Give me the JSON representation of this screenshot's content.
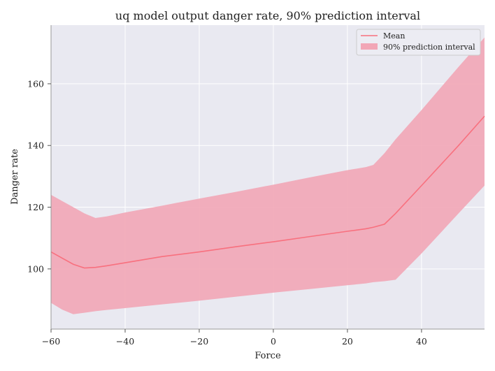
{
  "chart_data": {
    "type": "line",
    "title": "uq model output danger rate, 90% prediction interval",
    "xlabel": "Force",
    "ylabel": "Danger rate",
    "xlim": [
      -60,
      57
    ],
    "ylim": [
      80.5,
      179
    ],
    "xticks": [
      -60,
      -40,
      -20,
      0,
      20,
      40
    ],
    "yticks": [
      100,
      120,
      140,
      160
    ],
    "xtick_labels": [
      "−60",
      "−40",
      "−20",
      "0",
      "20",
      "40"
    ],
    "ytick_labels": [
      "100",
      "120",
      "140",
      "160"
    ],
    "grid": true,
    "legend_position": "top-right",
    "series": [
      {
        "name": "Mean",
        "kind": "line",
        "color": "#f8707e",
        "x": [
          -60,
          -57,
          -54,
          -51,
          -48,
          -45,
          -40,
          -30,
          -20,
          -10,
          0,
          10,
          20,
          25,
          27,
          30,
          33,
          40,
          50,
          57
        ],
        "y": [
          105.5,
          103.5,
          101.5,
          100.3,
          100.5,
          101.0,
          102.0,
          104.0,
          105.5,
          107.2,
          108.8,
          110.5,
          112.2,
          113.0,
          113.5,
          114.5,
          118.0,
          127.0,
          140.0,
          149.5
        ]
      },
      {
        "name": "90% prediction interval",
        "kind": "band",
        "color": "#f2a6b6",
        "x": [
          -60,
          -57,
          -54,
          -51,
          -48,
          -45,
          -40,
          -30,
          -20,
          -10,
          0,
          10,
          20,
          25,
          27,
          30,
          33,
          40,
          50,
          57
        ],
        "upper": [
          124.0,
          122.0,
          120.0,
          118.0,
          116.5,
          117.0,
          118.3,
          120.5,
          122.8,
          125.0,
          127.3,
          129.7,
          132.0,
          133.0,
          133.7,
          137.5,
          142.0,
          151.5,
          165.5,
          175.0
        ],
        "lower": [
          89.0,
          86.8,
          85.3,
          85.8,
          86.3,
          86.7,
          87.3,
          88.5,
          89.7,
          91.0,
          92.3,
          93.5,
          94.7,
          95.3,
          95.7,
          96.0,
          96.5,
          105.0,
          118.0,
          127.0
        ]
      }
    ],
    "colors": {
      "plot_background": "#e9e9f1",
      "grid": "#ffffff",
      "axis": "#999999"
    }
  }
}
